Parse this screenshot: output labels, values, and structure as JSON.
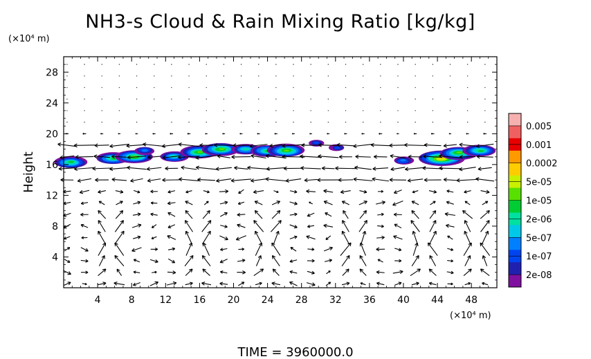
{
  "chart_data": {
    "type": "heatmap",
    "title": "NH3-s Cloud & Rain Mixing Ratio [kg/kg]",
    "ylabel": "Height",
    "y_unit_label": "(×10⁴ m)",
    "x_unit_label": "(×10⁴ m)",
    "xlim": [
      0,
      51
    ],
    "ylim": [
      0,
      30
    ],
    "x_ticks": [
      4,
      8,
      12,
      16,
      20,
      24,
      28,
      32,
      36,
      40,
      44,
      48
    ],
    "y_ticks": [
      4,
      8,
      12,
      16,
      20,
      24,
      28
    ],
    "footer": "TIME = 3960000.0",
    "colorbar": {
      "labels": [
        "0.005",
        "0.001",
        "0.0002",
        "5e-05",
        "1e-05",
        "2e-06",
        "5e-07",
        "1e-07",
        "2e-08"
      ],
      "colors": [
        "#f7b0b0",
        "#f06060",
        "#e80000",
        "#ff9900",
        "#ffcc00",
        "#c8f000",
        "#58e000",
        "#00cc33",
        "#00e0a0",
        "#00c8e8",
        "#0080ff",
        "#0044f0",
        "#2020b0",
        "#8010a0"
      ]
    },
    "cloud_cells": [
      {
        "x": 0.8,
        "y": 16.3,
        "level": 5
      },
      {
        "x": 5.8,
        "y": 16.8,
        "level": 5
      },
      {
        "x": 8.3,
        "y": 17.0,
        "level": 6
      },
      {
        "x": 9.5,
        "y": 17.8,
        "level": 2
      },
      {
        "x": 13.0,
        "y": 17.0,
        "level": 4
      },
      {
        "x": 16.0,
        "y": 17.6,
        "level": 6
      },
      {
        "x": 18.5,
        "y": 18.0,
        "level": 6
      },
      {
        "x": 21.5,
        "y": 18.0,
        "level": 4
      },
      {
        "x": 24.0,
        "y": 17.8,
        "level": 5
      },
      {
        "x": 26.2,
        "y": 17.8,
        "level": 6
      },
      {
        "x": 29.8,
        "y": 18.8,
        "level": 1
      },
      {
        "x": 32.2,
        "y": 18.2,
        "level": 1
      },
      {
        "x": 40.0,
        "y": 16.5,
        "level": 2
      },
      {
        "x": 44.5,
        "y": 16.8,
        "level": 8
      },
      {
        "x": 46.5,
        "y": 17.5,
        "level": 6
      },
      {
        "x": 49.0,
        "y": 17.8,
        "level": 5
      }
    ]
  }
}
